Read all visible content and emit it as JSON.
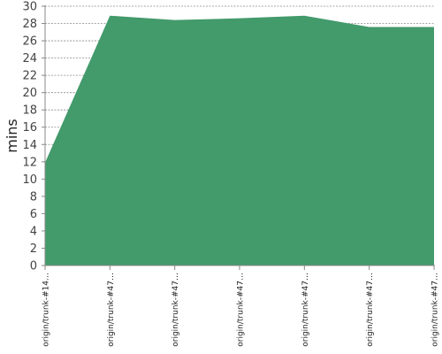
{
  "chart_data": {
    "type": "area",
    "ylabel": "mins",
    "xlabel": "",
    "ylim": [
      0,
      30
    ],
    "yticks": [
      0,
      2,
      4,
      6,
      8,
      10,
      12,
      14,
      16,
      18,
      20,
      22,
      24,
      26,
      28,
      30
    ],
    "grid": true,
    "fill_color": "#439a6b",
    "categories": [
      "origin/trunk-#14…",
      "origin/trunk-#47…",
      "origin/trunk-#47…",
      "origin/trunk-#47…",
      "origin/trunk-#47…",
      "origin/trunk-#47…",
      "origin/trunk-#47…"
    ],
    "values": [
      11.9,
      28.9,
      28.4,
      28.6,
      28.9,
      27.6,
      27.6
    ]
  }
}
